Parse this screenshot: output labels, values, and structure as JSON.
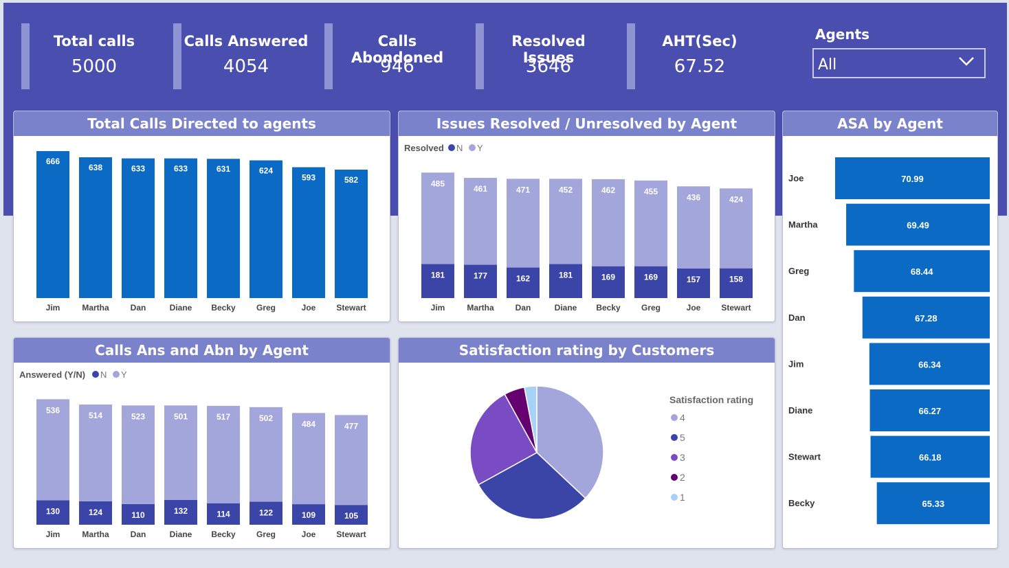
{
  "kpis": [
    {
      "title": "Total calls",
      "value": "5000"
    },
    {
      "title": "Calls Answered",
      "value": "4054"
    },
    {
      "title": "Calls Abondoned",
      "value": "946"
    },
    {
      "title": "Resolved Issues",
      "value": "3646"
    },
    {
      "title": "AHT(Sec)",
      "value": "67.52"
    }
  ],
  "agents_filter": {
    "label": "Agents",
    "value": "All"
  },
  "colors": {
    "blue": "#0b6bc4",
    "navy": "#3b45a8",
    "lavender": "#a3a6db",
    "purple": "#7a4cc4",
    "darkpurple": "#64006f",
    "lightblue": "#a6d2f7"
  },
  "chart_data": [
    {
      "type": "bar",
      "title": "Total Calls Directed to agents",
      "categories": [
        "Jim",
        "Martha",
        "Dan",
        "Diane",
        "Becky",
        "Greg",
        "Joe",
        "Stewart"
      ],
      "values": [
        666,
        638,
        633,
        633,
        631,
        624,
        593,
        582
      ]
    },
    {
      "type": "bar",
      "stacked": true,
      "title": "Issues Resolved / Unresolved by Agent",
      "legend_title": "Resolved",
      "categories": [
        "Jim",
        "Martha",
        "Dan",
        "Diane",
        "Becky",
        "Greg",
        "Joe",
        "Stewart"
      ],
      "series": [
        {
          "name": "N",
          "values": [
            181,
            177,
            162,
            181,
            169,
            169,
            157,
            158
          ]
        },
        {
          "name": "Y",
          "values": [
            485,
            461,
            471,
            452,
            462,
            455,
            436,
            424
          ]
        }
      ]
    },
    {
      "type": "bar",
      "orientation": "horizontal",
      "title": "ASA by Agent",
      "categories": [
        "Joe",
        "Martha",
        "Greg",
        "Dan",
        "Jim",
        "Diane",
        "Stewart",
        "Becky"
      ],
      "values": [
        70.99,
        69.49,
        68.44,
        67.28,
        66.34,
        66.27,
        66.18,
        65.33
      ]
    },
    {
      "type": "bar",
      "stacked": true,
      "title": "Calls Ans and Abn by Agent",
      "legend_title": "Answered (Y/N)",
      "categories": [
        "Jim",
        "Martha",
        "Dan",
        "Diane",
        "Becky",
        "Greg",
        "Joe",
        "Stewart"
      ],
      "series": [
        {
          "name": "N",
          "values": [
            130,
            124,
            110,
            132,
            114,
            122,
            109,
            105
          ]
        },
        {
          "name": "Y",
          "values": [
            536,
            514,
            523,
            501,
            517,
            502,
            484,
            477
          ]
        }
      ]
    },
    {
      "type": "pie",
      "title": "Satisfaction rating by Customers",
      "legend_title": "Satisfaction rating",
      "slices": [
        {
          "label": "4",
          "value": 37
        },
        {
          "label": "5",
          "value": 30
        },
        {
          "label": "3",
          "value": 25
        },
        {
          "label": "2",
          "value": 5
        },
        {
          "label": "1",
          "value": 3
        }
      ]
    }
  ]
}
